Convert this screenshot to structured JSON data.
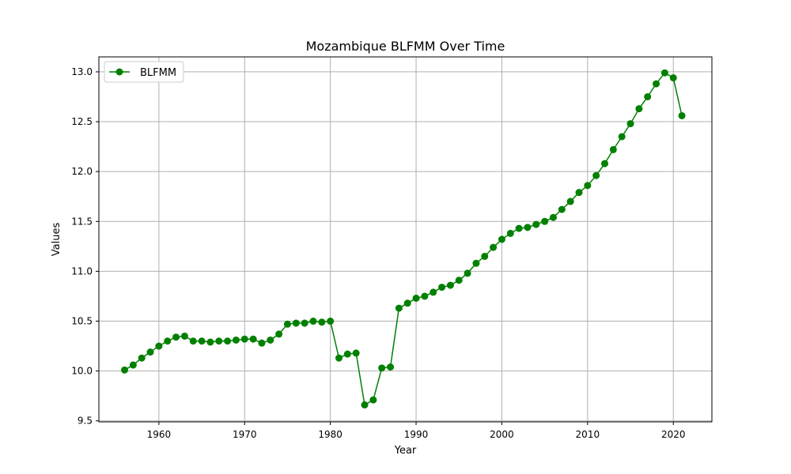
{
  "chart_data": {
    "type": "line",
    "title": "Mozambique BLFMM Over Time",
    "xlabel": "Year",
    "ylabel": "Values",
    "xlim": [
      1953,
      2024.5
    ],
    "ylim": [
      9.49,
      13.15
    ],
    "xticks": [
      1960,
      1970,
      1980,
      1990,
      2000,
      2010,
      2020
    ],
    "yticks": [
      9.5,
      10.0,
      10.5,
      11.0,
      11.5,
      12.0,
      12.5,
      13.0
    ],
    "ytick_labels": [
      "9.5",
      "10.0",
      "10.5",
      "11.0",
      "11.5",
      "12.0",
      "12.5",
      "13.0"
    ],
    "grid": true,
    "legend_position": "top-left",
    "series": [
      {
        "name": "BLFMM",
        "color": "#008000",
        "marker": "circle",
        "x": [
          1956,
          1957,
          1958,
          1959,
          1960,
          1961,
          1962,
          1963,
          1964,
          1965,
          1966,
          1967,
          1968,
          1969,
          1970,
          1971,
          1972,
          1973,
          1974,
          1975,
          1976,
          1977,
          1978,
          1979,
          1980,
          1981,
          1982,
          1983,
          1984,
          1985,
          1986,
          1987,
          1988,
          1989,
          1990,
          1991,
          1992,
          1993,
          1994,
          1995,
          1996,
          1997,
          1998,
          1999,
          2000,
          2001,
          2002,
          2003,
          2004,
          2005,
          2006,
          2007,
          2008,
          2009,
          2010,
          2011,
          2012,
          2013,
          2014,
          2015,
          2016,
          2017,
          2018,
          2019,
          2020,
          2021
        ],
        "y": [
          10.01,
          10.06,
          10.13,
          10.19,
          10.25,
          10.3,
          10.34,
          10.35,
          10.3,
          10.3,
          10.29,
          10.3,
          10.3,
          10.31,
          10.32,
          10.32,
          10.28,
          10.31,
          10.37,
          10.47,
          10.48,
          10.48,
          10.5,
          10.49,
          10.5,
          10.13,
          10.17,
          10.18,
          9.66,
          9.71,
          10.03,
          10.04,
          10.63,
          10.68,
          10.73,
          10.75,
          10.79,
          10.84,
          10.86,
          10.91,
          10.98,
          11.08,
          11.15,
          11.24,
          11.32,
          11.38,
          11.43,
          11.44,
          11.47,
          11.5,
          11.54,
          11.62,
          11.7,
          11.79,
          11.86,
          11.96,
          12.08,
          12.22,
          12.35,
          12.48,
          12.63,
          12.75,
          12.88,
          12.99,
          12.94,
          12.56
        ]
      }
    ]
  }
}
